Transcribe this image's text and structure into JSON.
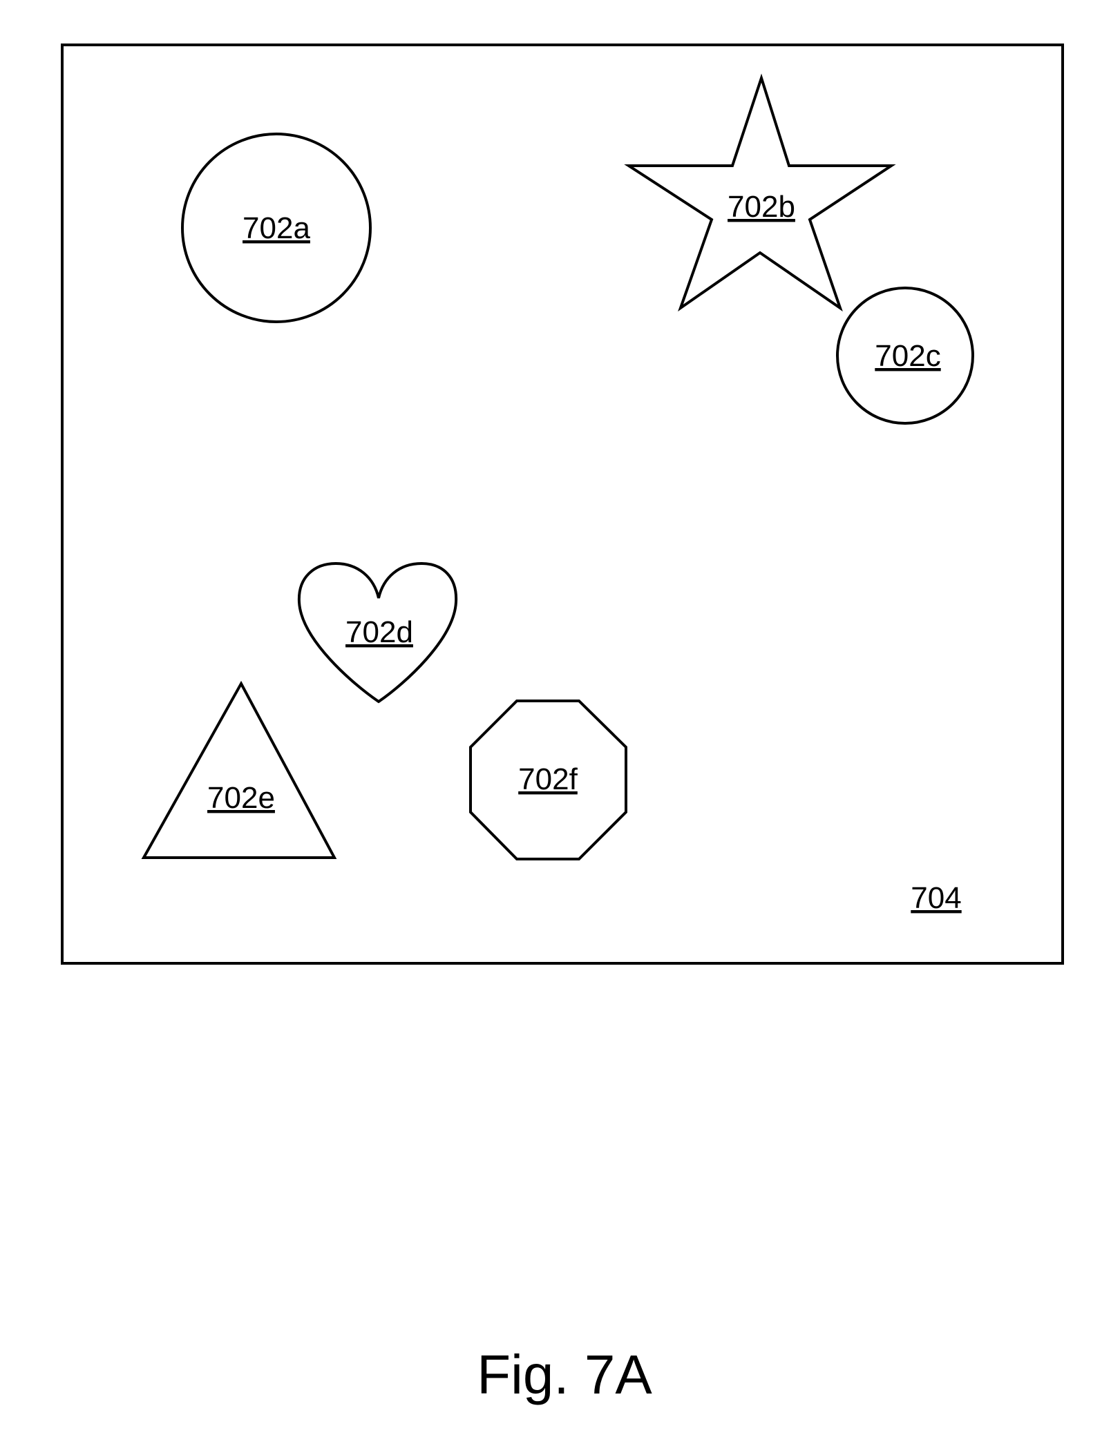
{
  "figure": {
    "caption": "Fig. 7A",
    "container_label": "704",
    "shapes": [
      {
        "id": "circle",
        "label": "702a"
      },
      {
        "id": "star",
        "label": "702b"
      },
      {
        "id": "small-circle",
        "label": "702c"
      },
      {
        "id": "heart",
        "label": "702d"
      },
      {
        "id": "triangle",
        "label": "702e"
      },
      {
        "id": "octagon",
        "label": "702f"
      }
    ]
  }
}
